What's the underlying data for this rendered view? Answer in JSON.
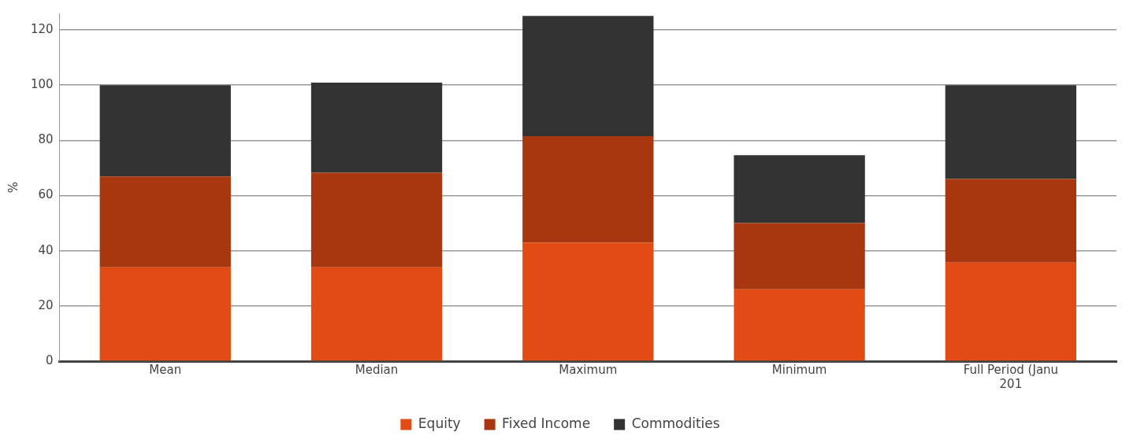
{
  "chart_data": {
    "type": "bar",
    "stacked": true,
    "ylabel": "%",
    "categories": [
      "Mean",
      "Median",
      "Maximum",
      "Minimum",
      "Full Period (Janu\n201"
    ],
    "series": [
      {
        "name": "Equity",
        "color": "#e24b13",
        "values": [
          34,
          34,
          42.9,
          26,
          35.7
        ]
      },
      {
        "name": "Fixed Income",
        "color": "#a8360f",
        "values": [
          32.9,
          34.3,
          38.6,
          24,
          30.3
        ]
      },
      {
        "name": "Commodities",
        "color": "#333333",
        "values": [
          33.1,
          32.6,
          43.6,
          24.6,
          34
        ]
      }
    ],
    "ylim": [
      0,
      126
    ],
    "yticks": [
      0,
      20,
      40,
      60,
      80,
      100,
      120
    ],
    "grid": "y",
    "legend": "bottom"
  }
}
